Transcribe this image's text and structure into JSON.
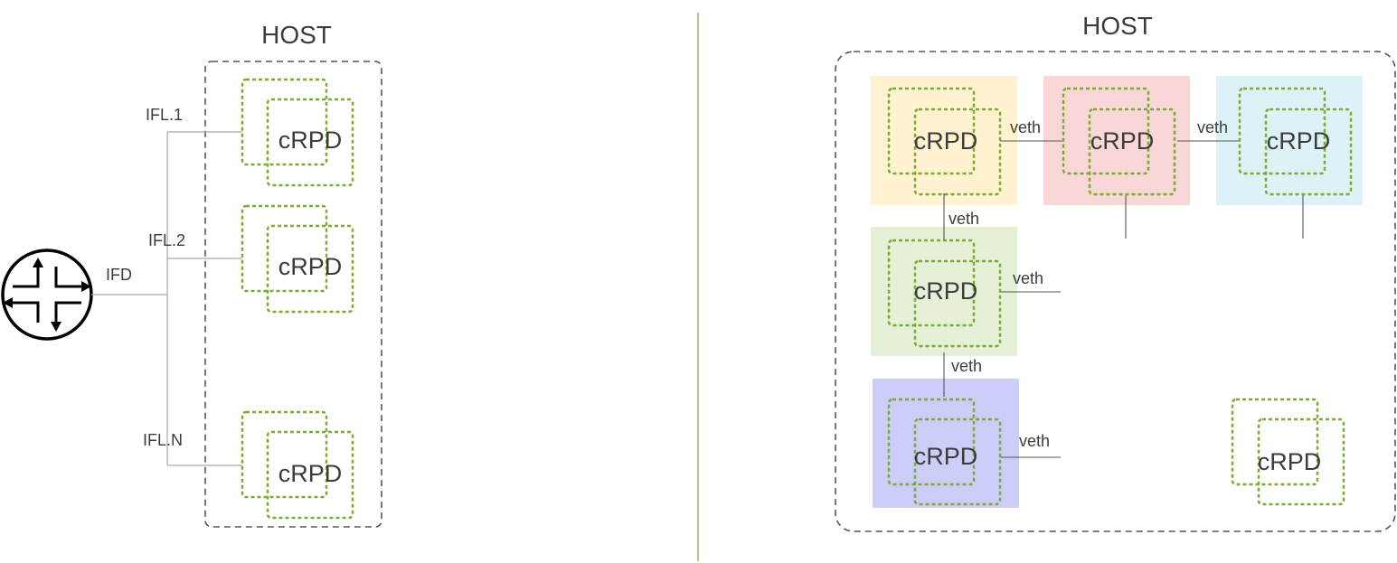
{
  "left_panel": {
    "host_title": "HOST",
    "ifd_label": "IFD",
    "ifl_labels": [
      "IFL.1",
      "IFL.2",
      "IFL.N"
    ],
    "crpd_labels": [
      "cRPD",
      "cRPD",
      "cRPD"
    ],
    "router_icon": "router-icon"
  },
  "right_panel": {
    "host_title": "HOST",
    "crpd_labels": [
      "cRPD",
      "cRPD",
      "cRPD",
      "cRPD",
      "cRPD",
      "cRPD"
    ],
    "veth_labels": [
      "veth",
      "veth",
      "veth",
      "veth",
      "veth",
      "veth"
    ],
    "tile_colors": [
      "#fff2d1",
      "#f8d7d6",
      "#dcf2f7",
      "#e5f0d6",
      "#cccdf9"
    ]
  },
  "colors": {
    "container_dash": "#7aab34",
    "host_border": "#555555",
    "divider": "#7aab34",
    "text": "#3c3c3c"
  }
}
